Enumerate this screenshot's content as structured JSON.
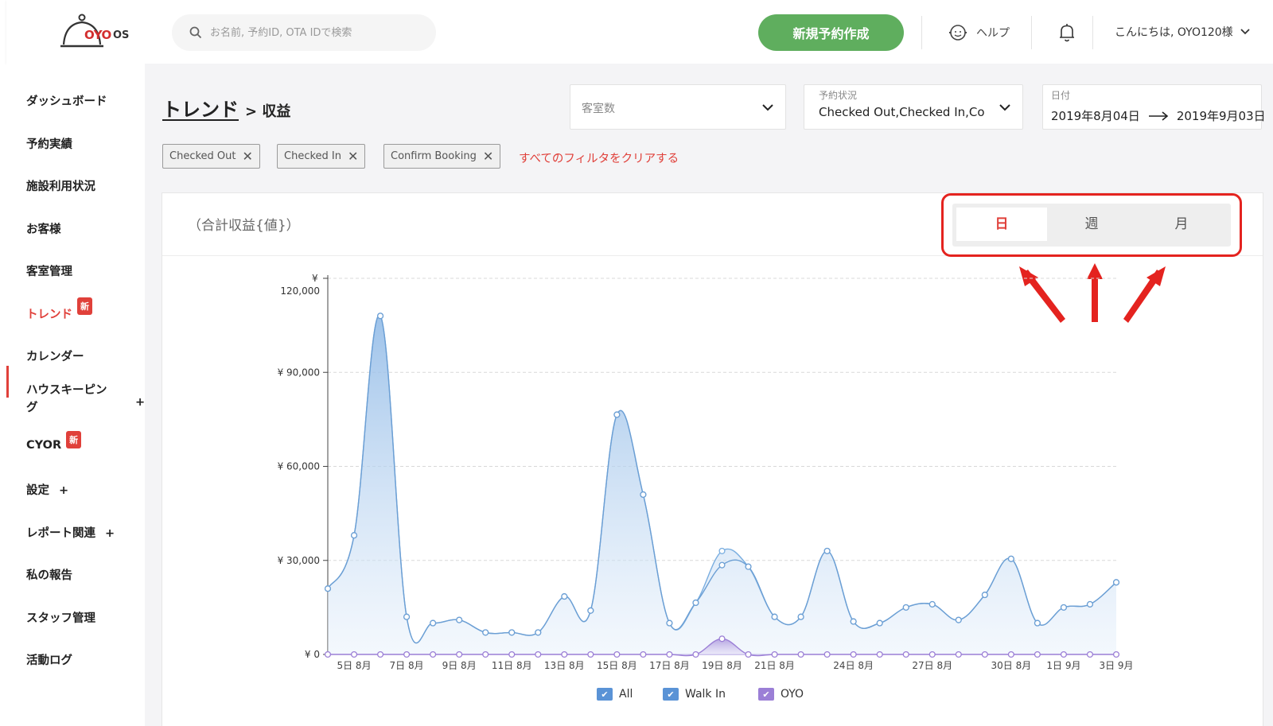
{
  "header": {
    "logo_text": "OYO",
    "logo_os": "OS",
    "search_placeholder": "お名前, 予約ID, OTA IDで検索",
    "new_booking_label": "新規予約作成",
    "help_label": "ヘルプ",
    "greeting": "こんにちは, OYO120様"
  },
  "sidebar": {
    "items": [
      {
        "label": "ダッシュボード"
      },
      {
        "label": "予約実績"
      },
      {
        "label": "施設利用状況"
      },
      {
        "label": "お客様"
      },
      {
        "label": "客室管理"
      },
      {
        "label": "トレンド",
        "badge": "新"
      },
      {
        "label": "カレンダー"
      },
      {
        "label": "ハウスキーピング"
      },
      {
        "label": "CYOR",
        "badge": "新"
      },
      {
        "label": "設定"
      },
      {
        "label": "レポート関連"
      },
      {
        "label": "私の報告"
      },
      {
        "label": "スタッフ管理"
      },
      {
        "label": "活動ログ"
      }
    ],
    "badge_new": "新",
    "plus": "+"
  },
  "main": {
    "title": "トレンド",
    "title_sub": "> 収益",
    "room_select_placeholder": "客室数",
    "status_label": "予約状況",
    "status_value": "Checked Out,Checked In,Co",
    "date_label": "日付",
    "date_from": "2019年8月04日",
    "date_to": "2019年9月03日",
    "chips": [
      "Checked Out",
      "Checked In",
      "Confirm Booking"
    ],
    "clear_filters": "すべてのフィルタをクリアする"
  },
  "card": {
    "title": "（合計収益{値}）",
    "toggle": [
      "日",
      "週",
      "月"
    ],
    "toggle_selected": "日"
  },
  "chart_data": {
    "type": "area",
    "x": [
      "4日 8月",
      "5日 8月",
      "6日 8月",
      "7日 8月",
      "8日 8月",
      "9日 8月",
      "10日 8月",
      "11日 8月",
      "12日 8月",
      "13日 8月",
      "14日 8月",
      "15日 8月",
      "16日 8月",
      "17日 8月",
      "18日 8月",
      "19日 8月",
      "20日 8月",
      "21日 8月",
      "22日 8月",
      "23日 8月",
      "24日 8月",
      "25日 8月",
      "26日 8月",
      "27日 8月",
      "28日 8月",
      "29日 8月",
      "30日 8月",
      "31日 8月",
      "1日 9月",
      "2日 9月",
      "3日 9月"
    ],
    "xtick_labels": [
      "5日 8月",
      "7日 8月",
      "9日 8月",
      "11日 8月",
      "13日 8月",
      "15日 8月",
      "17日 8月",
      "19日 8月",
      "21日 8月",
      "24日 8月",
      "27日 8月",
      "30日 8月",
      "1日 9月",
      "3日 9月"
    ],
    "ytick_labels": [
      "¥ 0",
      "¥ 30,000",
      "¥ 60,000",
      "¥ 90,000",
      "120,000"
    ],
    "y_unit": "¥",
    "ylim": [
      0,
      120000
    ],
    "series": [
      {
        "name": "All",
        "color": "#7aaee0",
        "values": [
          21000,
          38000,
          108000,
          12000,
          10000,
          11000,
          7000,
          7000,
          7000,
          18500,
          14000,
          76500,
          51000,
          10000,
          16500,
          33000,
          28000,
          12000,
          12000,
          33000,
          10500,
          10000,
          15000,
          16000,
          11000,
          19000,
          30500,
          10000,
          15000,
          16000,
          23000
        ]
      },
      {
        "name": "Walk In",
        "color": "#6c9fd4",
        "values": [
          21000,
          38000,
          108000,
          12000,
          10000,
          11000,
          7000,
          7000,
          7000,
          18500,
          14000,
          76500,
          51000,
          10000,
          16500,
          28500,
          28000,
          12000,
          12000,
          33000,
          10500,
          10000,
          15000,
          16000,
          11000,
          19000,
          30500,
          10000,
          15000,
          16000,
          23000
        ]
      },
      {
        "name": "OYO",
        "color": "#9b7fd6",
        "values": [
          0,
          0,
          0,
          0,
          0,
          0,
          0,
          0,
          0,
          0,
          0,
          0,
          0,
          0,
          0,
          5000,
          0,
          0,
          0,
          0,
          0,
          0,
          0,
          0,
          0,
          0,
          0,
          0,
          0,
          0,
          0
        ]
      }
    ]
  }
}
